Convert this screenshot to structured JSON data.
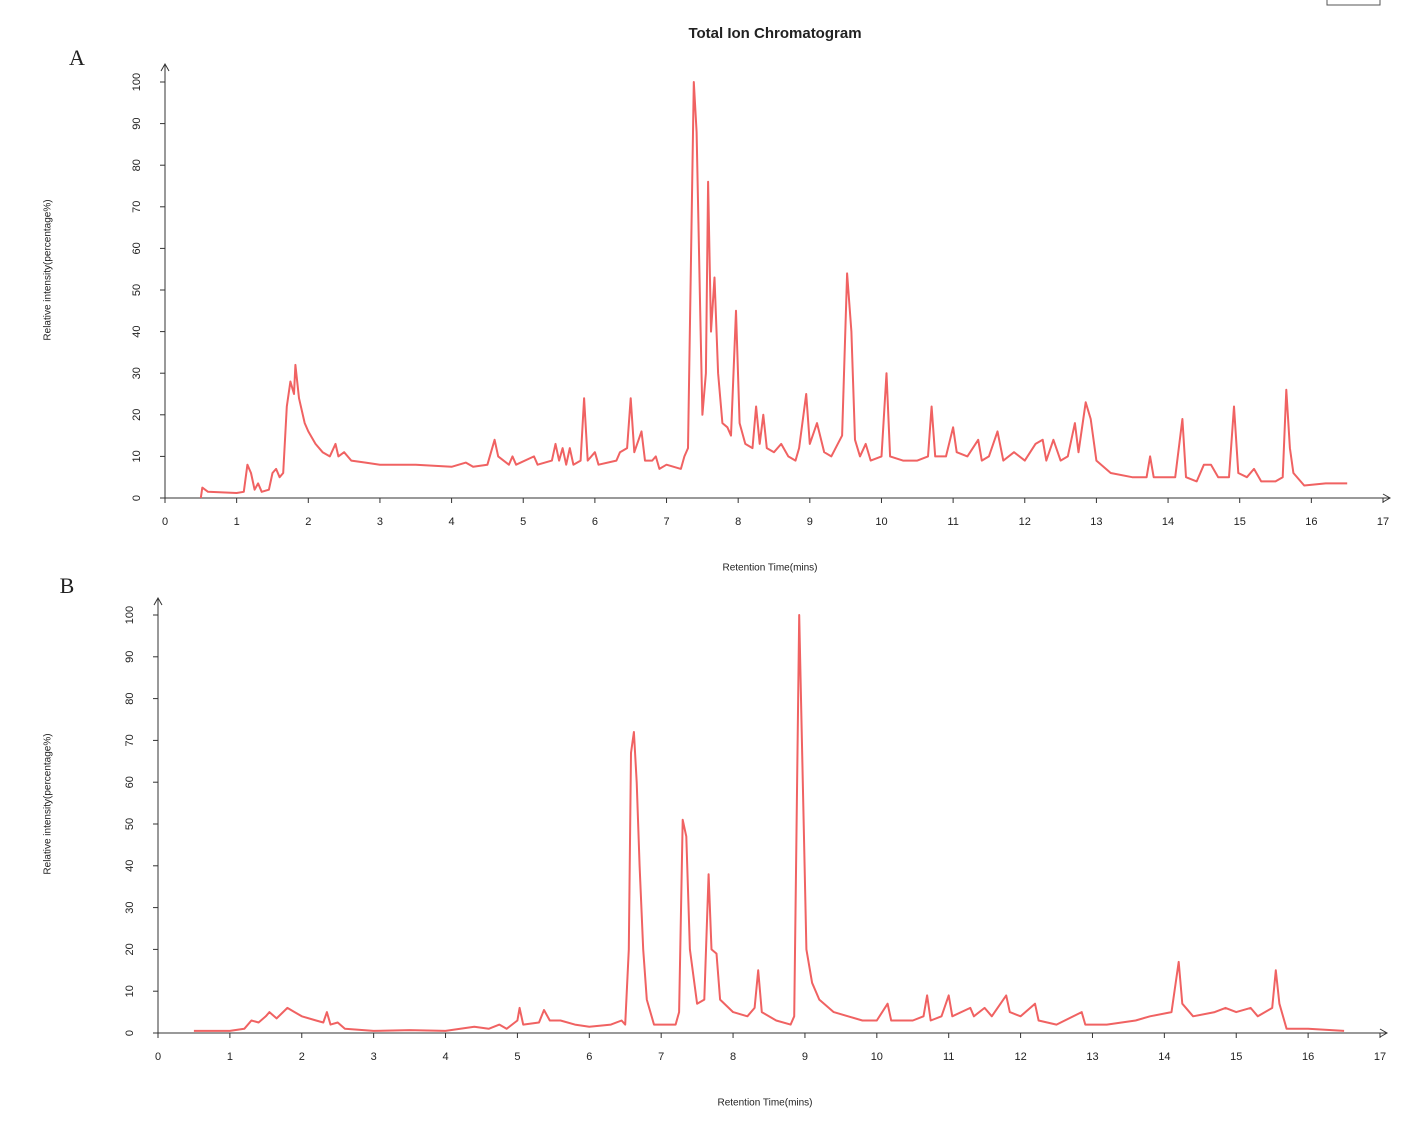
{
  "chart_data": [
    {
      "type": "line",
      "panel": "A",
      "title": "Total Ion Chromatogram",
      "xlabel": "Retention Time(mins)",
      "ylabel": "Relative intensity(percentage%)",
      "color": "#f06262",
      "xlim": [
        0,
        17
      ],
      "ylim": [
        0,
        100
      ],
      "xticks": [
        0,
        1,
        2,
        3,
        4,
        5,
        6,
        7,
        8,
        9,
        10,
        11,
        12,
        13,
        14,
        15,
        16,
        17
      ],
      "yticks": [
        0,
        10,
        20,
        30,
        40,
        50,
        60,
        70,
        80,
        90,
        100
      ],
      "x": [
        0.5,
        0.52,
        0.6,
        1.0,
        1.1,
        1.15,
        1.2,
        1.25,
        1.3,
        1.35,
        1.45,
        1.5,
        1.55,
        1.6,
        1.65,
        1.7,
        1.75,
        1.8,
        1.82,
        1.87,
        1.95,
        2.0,
        2.1,
        2.2,
        2.3,
        2.38,
        2.42,
        2.5,
        2.6,
        2.8,
        3.0,
        3.5,
        4.0,
        4.2,
        4.3,
        4.5,
        4.6,
        4.65,
        4.8,
        4.85,
        4.9,
        5.15,
        5.2,
        5.4,
        5.45,
        5.5,
        5.55,
        5.6,
        5.65,
        5.7,
        5.8,
        5.85,
        5.9,
        6.0,
        6.05,
        6.3,
        6.35,
        6.45,
        6.5,
        6.55,
        6.65,
        6.7,
        6.8,
        6.85,
        6.9,
        7.0,
        7.2,
        7.25,
        7.3,
        7.38,
        7.42,
        7.47,
        7.5,
        7.55,
        7.58,
        7.62,
        7.67,
        7.72,
        7.78,
        7.85,
        7.9,
        7.97,
        8.02,
        8.1,
        8.2,
        8.25,
        8.3,
        8.35,
        8.4,
        8.5,
        8.6,
        8.7,
        8.8,
        8.85,
        8.95,
        9.0,
        9.1,
        9.2,
        9.3,
        9.45,
        9.52,
        9.58,
        9.63,
        9.7,
        9.78,
        9.85,
        10.0,
        10.07,
        10.12,
        10.3,
        10.5,
        10.65,
        10.7,
        10.75,
        10.9,
        11.0,
        11.05,
        11.2,
        11.35,
        11.4,
        11.5,
        11.62,
        11.7,
        11.85,
        12.0,
        12.15,
        12.25,
        12.3,
        12.4,
        12.5,
        12.6,
        12.7,
        12.75,
        12.85,
        12.92,
        13.0,
        13.2,
        13.5,
        13.7,
        13.75,
        13.8,
        14.1,
        14.2,
        14.25,
        14.4,
        14.5,
        14.6,
        14.7,
        14.85,
        14.92,
        14.98,
        15.1,
        15.2,
        15.3,
        15.5,
        15.6,
        15.65,
        15.7,
        15.75,
        15.9,
        16.2,
        16.5
      ],
      "values": [
        0,
        2.5,
        1.5,
        1.2,
        1.5,
        8,
        6,
        2,
        3.5,
        1.5,
        2,
        6,
        7,
        5,
        6,
        22,
        28,
        25,
        32,
        24,
        18,
        16,
        13,
        11,
        10,
        13,
        10,
        11,
        9,
        8.5,
        8,
        8,
        7.5,
        8.5,
        7.5,
        8,
        14,
        10,
        8,
        10,
        8,
        10,
        8,
        9,
        13,
        9,
        12,
        8,
        12,
        8,
        9,
        24,
        9,
        11,
        8,
        9,
        11,
        12,
        24,
        11,
        16,
        9,
        9,
        10,
        7,
        8,
        7,
        10,
        12,
        100,
        88,
        45,
        20,
        30,
        76,
        40,
        53,
        30,
        18,
        17,
        15,
        45,
        18,
        13,
        12,
        22,
        13,
        20,
        12,
        11,
        13,
        10,
        9,
        12,
        25,
        13,
        18,
        11,
        10,
        15,
        54,
        40,
        14,
        10,
        13,
        9,
        10,
        30,
        10,
        9,
        9,
        10,
        22,
        10,
        10,
        17,
        11,
        10,
        14,
        9,
        10,
        16,
        9,
        11,
        9,
        13,
        14,
        9,
        14,
        9,
        10,
        18,
        11,
        23,
        19,
        9,
        6,
        5,
        5,
        10,
        5,
        5,
        19,
        5,
        4,
        8,
        8,
        5,
        5,
        22,
        6,
        5,
        7,
        4,
        4,
        5,
        26,
        12,
        6,
        3,
        3.5,
        3.5
      ]
    },
    {
      "type": "line",
      "panel": "B",
      "xlabel": "Retention Time(mins)",
      "ylabel": "Relative intensity(percentage%)",
      "color": "#f06262",
      "xlim": [
        0,
        17
      ],
      "ylim": [
        0,
        100
      ],
      "xticks": [
        0,
        1,
        2,
        3,
        4,
        5,
        6,
        7,
        8,
        9,
        10,
        11,
        12,
        13,
        14,
        15,
        16,
        17
      ],
      "yticks": [
        0,
        10,
        20,
        30,
        40,
        50,
        60,
        70,
        80,
        90,
        100
      ],
      "x": [
        0.5,
        1.0,
        1.2,
        1.3,
        1.4,
        1.5,
        1.55,
        1.65,
        1.8,
        1.9,
        2.0,
        2.2,
        2.3,
        2.35,
        2.4,
        2.5,
        2.6,
        3.0,
        3.5,
        4.0,
        4.4,
        4.6,
        4.75,
        4.85,
        5.0,
        5.03,
        5.08,
        5.3,
        5.37,
        5.45,
        5.6,
        5.8,
        6.0,
        6.3,
        6.45,
        6.5,
        6.55,
        6.58,
        6.62,
        6.66,
        6.7,
        6.75,
        6.8,
        6.9,
        7.0,
        7.2,
        7.25,
        7.3,
        7.35,
        7.4,
        7.5,
        7.6,
        7.66,
        7.7,
        7.77,
        7.82,
        8.0,
        8.2,
        8.3,
        8.35,
        8.4,
        8.6,
        8.8,
        8.85,
        8.92,
        8.97,
        9.02,
        9.1,
        9.2,
        9.4,
        9.6,
        9.8,
        10.0,
        10.15,
        10.2,
        10.5,
        10.65,
        10.7,
        10.75,
        10.9,
        11.0,
        11.05,
        11.3,
        11.35,
        11.5,
        11.6,
        11.8,
        11.85,
        12.0,
        12.2,
        12.25,
        12.5,
        12.85,
        12.9,
        13.2,
        13.6,
        13.8,
        14.1,
        14.2,
        14.25,
        14.4,
        14.7,
        14.85,
        15.0,
        15.2,
        15.3,
        15.5,
        15.55,
        15.6,
        15.7,
        16.0,
        16.5
      ],
      "values": [
        0.5,
        0.5,
        1,
        3,
        2.5,
        4,
        5,
        3.5,
        6,
        5,
        4,
        3,
        2.5,
        5,
        2,
        2.5,
        1,
        0.5,
        0.7,
        0.5,
        1.5,
        1,
        2,
        1,
        3,
        6,
        2,
        2.5,
        5.5,
        3,
        3,
        2,
        1.5,
        2,
        3,
        2,
        20,
        67,
        72,
        60,
        40,
        20,
        8,
        2,
        2,
        2,
        5,
        51,
        47,
        20,
        7,
        8,
        38,
        20,
        19,
        8,
        5,
        4,
        6,
        15,
        5,
        3,
        2,
        4,
        100,
        60,
        20,
        12,
        8,
        5,
        4,
        3,
        3,
        7,
        3,
        3,
        4,
        9,
        3,
        4,
        9,
        4,
        6,
        4,
        6,
        4,
        9,
        5,
        4,
        7,
        3,
        2,
        5,
        2,
        2,
        3,
        4,
        5,
        17,
        7,
        4,
        5,
        6,
        5,
        6,
        4,
        6,
        15,
        7,
        1,
        1,
        0.5
      ]
    }
  ]
}
